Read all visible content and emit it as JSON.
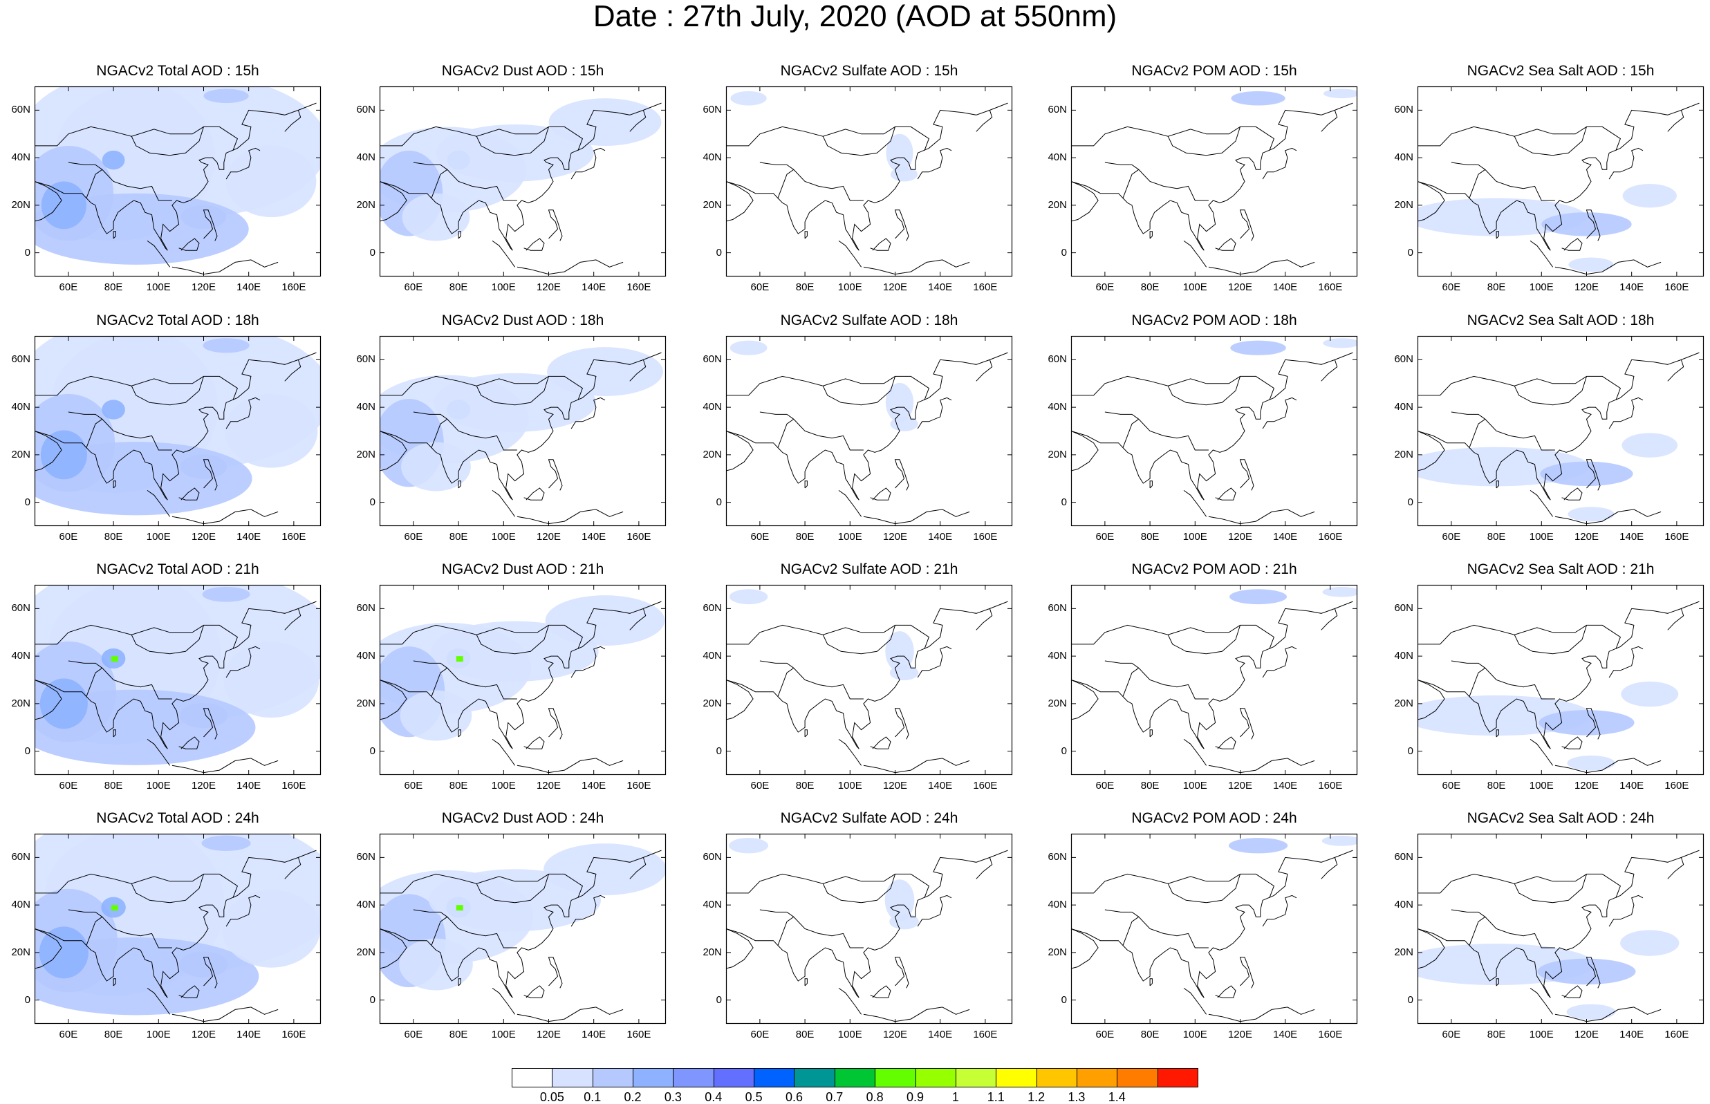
{
  "title": "Date : 27th July, 2020 (AOD at 550nm)",
  "x_tick_labels": [
    "60E",
    "80E",
    "100E",
    "120E",
    "140E",
    "160E"
  ],
  "y_tick_labels": [
    "60N",
    "40N",
    "20N",
    "0"
  ],
  "panels": [
    [
      "NGACv2 Total AOD : 15h",
      "NGACv2 Dust AOD : 15h",
      "NGACv2 Sulfate AOD : 15h",
      "NGACv2 POM AOD : 15h",
      "NGACv2 Sea Salt AOD : 15h"
    ],
    [
      "NGACv2 Total AOD : 18h",
      "NGACv2 Dust AOD : 18h",
      "NGACv2 Sulfate AOD : 18h",
      "NGACv2 POM AOD : 18h",
      "NGACv2 Sea Salt AOD : 18h"
    ],
    [
      "NGACv2 Total AOD : 21h",
      "NGACv2 Dust AOD : 21h",
      "NGACv2 Sulfate AOD : 21h",
      "NGACv2 POM AOD : 21h",
      "NGACv2 Sea Salt AOD : 21h"
    ],
    [
      "NGACv2 Total AOD : 24h",
      "NGACv2 Dust AOD : 24h",
      "NGACv2 Sulfate AOD : 24h",
      "NGACv2 POM AOD : 24h",
      "NGACv2 Sea Salt  AOD : 24h"
    ]
  ],
  "colorbar": {
    "labels": [
      "0.05",
      "0.1",
      "0.2",
      "0.3",
      "0.4",
      "0.5",
      "0.6",
      "0.7",
      "0.8",
      "0.9",
      "1",
      "1.1",
      "1.2",
      "1.3",
      "1.4"
    ],
    "colors": [
      "#ffffff",
      "#d6e2ff",
      "#b5c9ff",
      "#8eb2ff",
      "#7f96ff",
      "#6370ff",
      "#0063ff",
      "#009696",
      "#00c633",
      "#63ff00",
      "#96ff00",
      "#c6ff33",
      "#ffff00",
      "#ffc600",
      "#ffa000",
      "#ff7c00",
      "#ff1900"
    ]
  },
  "map_colors": {
    "coast": "#000000",
    "light": "#d6e2ff",
    "mid": "#b5c9ff",
    "strong": "#8eb2ff",
    "stronger": "#7f96ff",
    "hot": "#63ff00"
  }
}
